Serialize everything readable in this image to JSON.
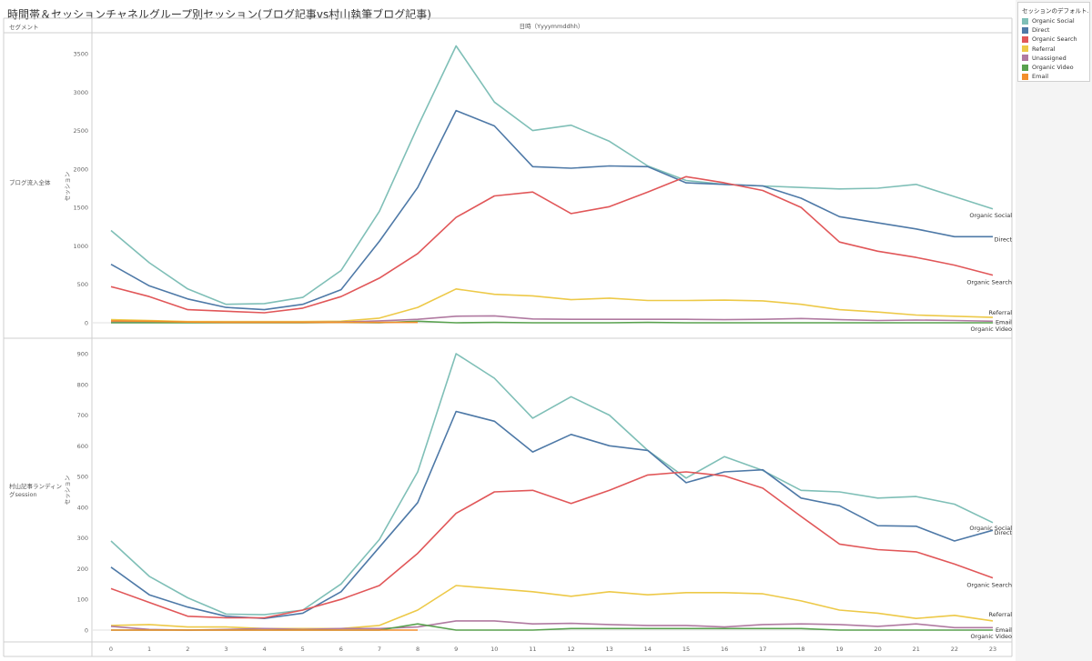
{
  "title": "時間帯＆セッションチャネルグループ別セッション(ブログ記事vs村山執筆ブログ記事)",
  "segment_header": "セグメント",
  "column_header": "日時（Yyyymmddhh）",
  "legend": {
    "title": "セッションのデフォルト...",
    "items": [
      {
        "label": "Organic Social",
        "color": "#7fbfb7"
      },
      {
        "label": "Direct",
        "color": "#4e79a7"
      },
      {
        "label": "Organic Search",
        "color": "#e15759"
      },
      {
        "label": "Referral",
        "color": "#edc948"
      },
      {
        "label": "Unassigned",
        "color": "#b07aa1"
      },
      {
        "label": "Organic Video",
        "color": "#59a14f"
      },
      {
        "label": "Email",
        "color": "#f28e2b"
      }
    ]
  },
  "chart_data": [
    {
      "type": "line",
      "segment": "ブログ流入全体",
      "ylabel": "セッション",
      "xlabel": "日時（Yyyymmddhh）",
      "x": [
        0,
        1,
        2,
        3,
        4,
        5,
        6,
        7,
        8,
        9,
        10,
        11,
        12,
        13,
        14,
        15,
        16,
        17,
        18,
        19,
        20,
        21,
        22,
        23
      ],
      "ylim": [
        0,
        3700
      ],
      "yticks": [
        0,
        500,
        1000,
        1500,
        2000,
        2500,
        3000,
        3500
      ],
      "series": [
        {
          "name": "Organic Social",
          "color": "#7fbfb7",
          "values": [
            1200,
            780,
            440,
            240,
            250,
            330,
            680,
            1450,
            2550,
            3600,
            2870,
            2500,
            2570,
            2360,
            2040,
            1850,
            1800,
            1780,
            1760,
            1740,
            1750,
            1800,
            1640,
            1480
          ]
        },
        {
          "name": "Direct",
          "color": "#4e79a7",
          "values": [
            760,
            480,
            310,
            200,
            170,
            240,
            430,
            1060,
            1760,
            2760,
            2560,
            2030,
            2010,
            2040,
            2030,
            1820,
            1800,
            1780,
            1620,
            1380,
            1300,
            1220,
            1120,
            1120
          ]
        },
        {
          "name": "Organic Search",
          "color": "#e15759",
          "values": [
            470,
            340,
            170,
            150,
            130,
            190,
            340,
            580,
            900,
            1370,
            1650,
            1700,
            1420,
            1510,
            1700,
            1900,
            1820,
            1720,
            1500,
            1050,
            930,
            850,
            750,
            620
          ]
        },
        {
          "name": "Referral",
          "color": "#edc948",
          "values": [
            40,
            30,
            15,
            15,
            15,
            15,
            20,
            60,
            200,
            440,
            370,
            350,
            300,
            320,
            290,
            290,
            295,
            285,
            240,
            170,
            140,
            100,
            85,
            70
          ]
        },
        {
          "name": "Unassigned",
          "color": "#b07aa1",
          "values": [
            15,
            12,
            5,
            5,
            5,
            5,
            10,
            25,
            45,
            85,
            90,
            50,
            45,
            45,
            45,
            45,
            40,
            45,
            55,
            40,
            30,
            35,
            30,
            20
          ]
        },
        {
          "name": "Organic Video",
          "color": "#59a14f",
          "values": [
            0,
            0,
            0,
            0,
            0,
            0,
            5,
            0,
            20,
            0,
            5,
            0,
            0,
            0,
            5,
            0,
            0,
            0,
            0,
            0,
            0,
            0,
            0,
            0
          ]
        },
        {
          "name": "Email",
          "color": "#f28e2b",
          "values": [
            25,
            20,
            10,
            5,
            5,
            5,
            5,
            5,
            5,
            null,
            null,
            null,
            null,
            null,
            null,
            null,
            null,
            null,
            null,
            null,
            null,
            null,
            null,
            null
          ]
        }
      ],
      "end_labels": [
        "Organic Social",
        "Direct",
        "Organic Search",
        "Referral",
        "Email",
        "Organic Video"
      ]
    },
    {
      "type": "line",
      "segment": "村山記事ランディングsession",
      "ylabel": "セッション",
      "xlabel": "日時（Yyyymmddhh）",
      "x": [
        0,
        1,
        2,
        3,
        4,
        5,
        6,
        7,
        8,
        9,
        10,
        11,
        12,
        13,
        14,
        15,
        16,
        17,
        18,
        19,
        20,
        21,
        22,
        23
      ],
      "xticks": [
        "0",
        "1",
        "2",
        "3",
        "4",
        "5",
        "6",
        "7",
        "8",
        "9",
        "10",
        "11",
        "12",
        "13",
        "14",
        "15",
        "16",
        "17",
        "18",
        "19",
        "20",
        "21",
        "22",
        "23"
      ],
      "ylim": [
        0,
        930
      ],
      "yticks": [
        0,
        100,
        200,
        300,
        400,
        500,
        600,
        700,
        800,
        900
      ],
      "series": [
        {
          "name": "Organic Social",
          "color": "#7fbfb7",
          "values": [
            290,
            175,
            105,
            52,
            50,
            65,
            150,
            295,
            515,
            900,
            820,
            690,
            760,
            700,
            585,
            495,
            565,
            520,
            455,
            450,
            430,
            435,
            410,
            350
          ]
        },
        {
          "name": "Direct",
          "color": "#4e79a7",
          "values": [
            205,
            115,
            75,
            45,
            38,
            55,
            125,
            270,
            415,
            712,
            680,
            580,
            637,
            600,
            585,
            480,
            515,
            522,
            430,
            405,
            340,
            338,
            290,
            325
          ]
        },
        {
          "name": "Organic Search",
          "color": "#e15759",
          "values": [
            135,
            90,
            45,
            40,
            40,
            65,
            100,
            145,
            250,
            380,
            450,
            455,
            412,
            455,
            505,
            515,
            502,
            462,
            370,
            280,
            262,
            255,
            215,
            170
          ]
        },
        {
          "name": "Referral",
          "color": "#edc948",
          "values": [
            15,
            18,
            10,
            10,
            5,
            5,
            5,
            15,
            65,
            145,
            135,
            125,
            110,
            125,
            115,
            122,
            122,
            118,
            95,
            65,
            55,
            38,
            48,
            30
          ]
        },
        {
          "name": "Unassigned",
          "color": "#b07aa1",
          "values": [
            12,
            2,
            0,
            2,
            5,
            2,
            5,
            5,
            10,
            30,
            30,
            20,
            22,
            18,
            15,
            15,
            10,
            18,
            20,
            18,
            12,
            20,
            8,
            8
          ]
        },
        {
          "name": "Organic Video",
          "color": "#59a14f",
          "values": [
            0,
            0,
            0,
            0,
            0,
            0,
            0,
            0,
            20,
            0,
            0,
            0,
            5,
            5,
            5,
            5,
            5,
            5,
            5,
            0,
            0,
            0,
            0,
            0
          ]
        },
        {
          "name": "Email",
          "color": "#f28e2b",
          "values": [
            0,
            0,
            0,
            0,
            0,
            0,
            0,
            0,
            0,
            null,
            null,
            null,
            null,
            null,
            null,
            null,
            null,
            null,
            null,
            null,
            null,
            null,
            null,
            null
          ]
        }
      ],
      "end_labels": [
        "Organic Social",
        "Direct",
        "Organic Search",
        "Referral",
        "Email",
        "Organic Video"
      ]
    }
  ]
}
